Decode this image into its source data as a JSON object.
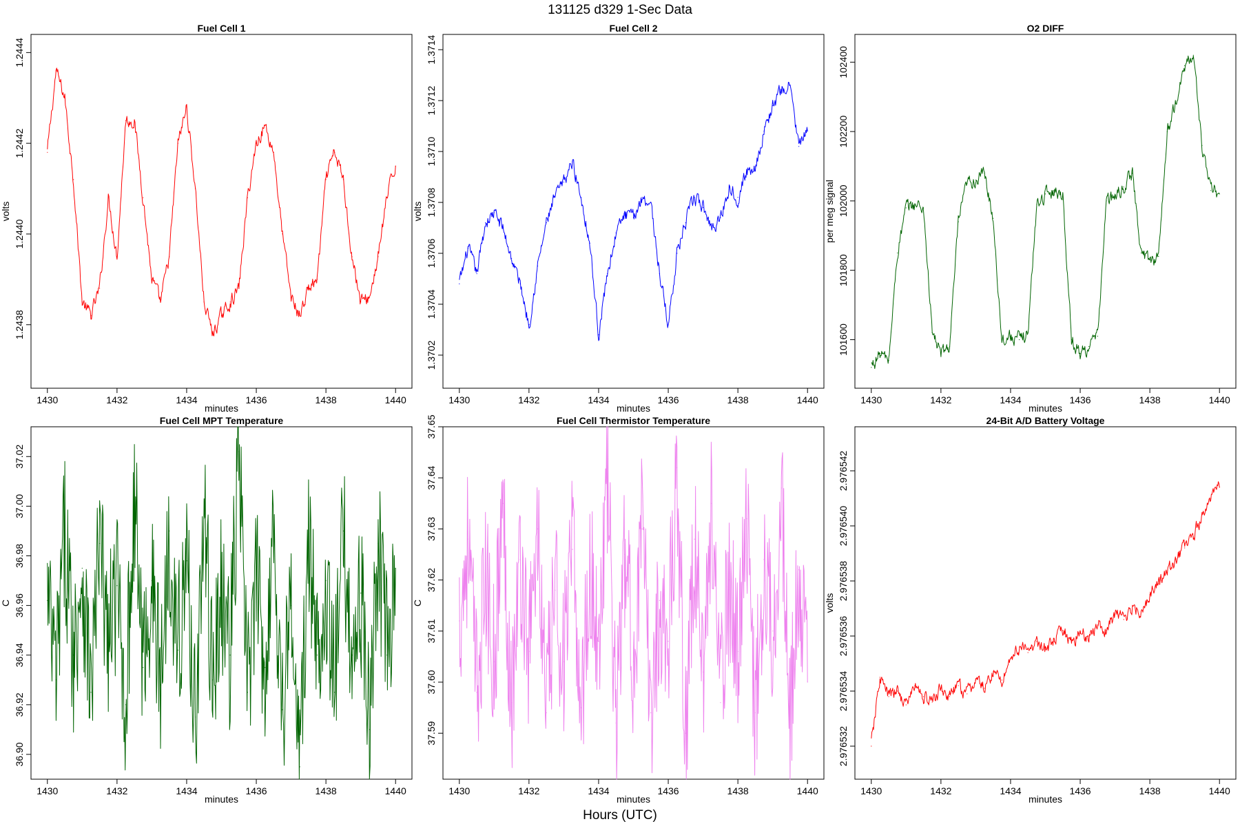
{
  "figure": {
    "title": "131125   d329   1-Sec Data",
    "xlabel": "Hours (UTC)"
  },
  "chart_data": [
    {
      "type": "line",
      "title": "Fuel Cell 1",
      "xlabel": "minutes",
      "ylabel": "volts",
      "color": "#ff0000",
      "xlim": [
        1430,
        1440
      ],
      "ylim": [
        1.24366,
        1.24444
      ],
      "xticks": [
        1430,
        1432,
        1434,
        1436,
        1438,
        1440
      ],
      "xtick_labels": [
        "1430",
        "1432",
        "1434",
        "1436",
        "1438",
        "1440"
      ],
      "yticks": [
        1.2438,
        1.244,
        1.2442,
        1.2444
      ],
      "ytick_labels": [
        "1.2438",
        "1.2440",
        "1.2442",
        "1.2444"
      ],
      "series": [
        {
          "name": "Fuel Cell 1",
          "x": [
            1430,
            1430.25,
            1430.5,
            1430.75,
            1431,
            1431.25,
            1431.5,
            1431.75,
            1432,
            1432.25,
            1432.5,
            1432.75,
            1433,
            1433.25,
            1433.5,
            1433.75,
            1434,
            1434.25,
            1434.5,
            1434.75,
            1435,
            1435.25,
            1435.5,
            1435.75,
            1436,
            1436.25,
            1436.5,
            1436.75,
            1437,
            1437.25,
            1437.5,
            1437.75,
            1438,
            1438.25,
            1438.5,
            1438.75,
            1439,
            1439.25,
            1439.5,
            1439.75,
            1440
          ],
          "values": [
            1.24418,
            1.24436,
            1.2443,
            1.24412,
            1.24385,
            1.24382,
            1.24388,
            1.24408,
            1.24395,
            1.24425,
            1.24425,
            1.24408,
            1.2439,
            1.24385,
            1.24395,
            1.2442,
            1.24428,
            1.2441,
            1.24385,
            1.24378,
            1.24382,
            1.24385,
            1.24388,
            1.24408,
            1.2442,
            1.24424,
            1.24418,
            1.244,
            1.24386,
            1.24382,
            1.24388,
            1.2439,
            1.24412,
            1.24418,
            1.24412,
            1.24395,
            1.24385,
            1.24386,
            1.24395,
            1.24408,
            1.24415
          ]
        }
      ]
    },
    {
      "type": "line",
      "title": "Fuel Cell 2",
      "xlabel": "minutes",
      "ylabel": "volts",
      "color": "#0000ff",
      "xlim": [
        1430,
        1440
      ],
      "ylim": [
        1.37007,
        1.37146
      ],
      "xticks": [
        1430,
        1432,
        1434,
        1436,
        1438,
        1440
      ],
      "xtick_labels": [
        "1430",
        "1432",
        "1434",
        "1436",
        "1438",
        "1440"
      ],
      "yticks": [
        1.3702,
        1.3704,
        1.3706,
        1.3708,
        1.371,
        1.3712,
        1.3714
      ],
      "ytick_labels": [
        "1.3702",
        "1.3704",
        "1.3706",
        "1.3708",
        "1.3710",
        "1.3712",
        "1.3714"
      ],
      "series": [
        {
          "name": "Fuel Cell 2",
          "x": [
            1430,
            1430.25,
            1430.5,
            1430.75,
            1431,
            1431.25,
            1431.5,
            1431.75,
            1432,
            1432.25,
            1432.5,
            1432.75,
            1433,
            1433.25,
            1433.5,
            1433.75,
            1434,
            1434.25,
            1434.5,
            1434.75,
            1435,
            1435.25,
            1435.5,
            1435.75,
            1436,
            1436.25,
            1436.5,
            1436.75,
            1437,
            1437.25,
            1437.5,
            1437.75,
            1438,
            1438.25,
            1438.5,
            1438.75,
            1439,
            1439.25,
            1439.5,
            1439.75,
            1440
          ],
          "values": [
            1.37048,
            1.37062,
            1.37052,
            1.37072,
            1.37076,
            1.3707,
            1.37058,
            1.37048,
            1.37032,
            1.37055,
            1.37072,
            1.37082,
            1.37088,
            1.37096,
            1.37082,
            1.37064,
            1.37028,
            1.37052,
            1.37068,
            1.37075,
            1.37074,
            1.37082,
            1.3708,
            1.37052,
            1.37032,
            1.3706,
            1.37072,
            1.37082,
            1.37078,
            1.3707,
            1.37074,
            1.37086,
            1.37082,
            1.37092,
            1.37094,
            1.37108,
            1.37118,
            1.37124,
            1.37126,
            1.37102,
            1.37108
          ]
        }
      ]
    },
    {
      "type": "line",
      "title": "O2 DIFF",
      "xlabel": "minutes",
      "ylabel": "per meg signal",
      "color": "#006400",
      "xlim": [
        1430,
        1440
      ],
      "ylim": [
        101460,
        102480
      ],
      "xticks": [
        1430,
        1432,
        1434,
        1436,
        1438,
        1440
      ],
      "xtick_labels": [
        "1430",
        "1432",
        "1434",
        "1436",
        "1438",
        "1440"
      ],
      "yticks": [
        101600,
        101800,
        102000,
        102200,
        102400
      ],
      "ytick_labels": [
        "101600",
        "101800",
        "102000",
        "102200",
        "102400"
      ],
      "series": [
        {
          "name": "O2 DIFF",
          "x": [
            1430,
            1430.25,
            1430.5,
            1430.75,
            1431,
            1431.25,
            1431.5,
            1431.75,
            1432,
            1432.25,
            1432.5,
            1432.75,
            1433,
            1433.25,
            1433.5,
            1433.75,
            1434,
            1434.25,
            1434.5,
            1434.75,
            1435,
            1435.25,
            1435.5,
            1435.75,
            1436,
            1436.25,
            1436.5,
            1436.75,
            1437,
            1437.25,
            1437.5,
            1437.75,
            1438,
            1438.25,
            1438.5,
            1438.75,
            1439,
            1439.25,
            1439.5,
            1439.75,
            1440
          ],
          "values": [
            101520,
            101560,
            101540,
            101850,
            101980,
            101990,
            101980,
            101620,
            101560,
            101580,
            101940,
            102050,
            102060,
            102080,
            101950,
            101600,
            101610,
            101600,
            101620,
            101990,
            102020,
            102030,
            102020,
            101600,
            101560,
            101580,
            101610,
            102000,
            102010,
            102040,
            102080,
            101850,
            101830,
            101840,
            102200,
            102280,
            102390,
            102420,
            102160,
            102030,
            102020
          ]
        }
      ]
    },
    {
      "type": "line",
      "title": "Fuel Cell MPT Temperature",
      "xlabel": "minutes",
      "ylabel": "C",
      "color": "#006400",
      "xlim": [
        1430,
        1440
      ],
      "ylim": [
        36.89,
        37.032
      ],
      "xticks": [
        1430,
        1432,
        1434,
        1436,
        1438,
        1440
      ],
      "xtick_labels": [
        "1430",
        "1432",
        "1434",
        "1436",
        "1438",
        "1440"
      ],
      "yticks": [
        36.9,
        36.92,
        36.94,
        36.96,
        36.98,
        37.0,
        37.02
      ],
      "ytick_labels": [
        "36.90",
        "36.92",
        "36.94",
        "36.96",
        "36.98",
        "37.00",
        "37.02"
      ],
      "series": [
        {
          "name": "Fuel Cell MPT Temperature",
          "x": [
            1430,
            1430.25,
            1430.5,
            1430.75,
            1431,
            1431.25,
            1431.5,
            1431.75,
            1432,
            1432.25,
            1432.5,
            1432.75,
            1433,
            1433.25,
            1433.5,
            1433.75,
            1434,
            1434.25,
            1434.5,
            1434.75,
            1435,
            1435.25,
            1435.5,
            1435.75,
            1436,
            1436.25,
            1436.5,
            1436.75,
            1437,
            1437.25,
            1437.5,
            1437.75,
            1438,
            1438.25,
            1438.5,
            1438.75,
            1439,
            1439.25,
            1439.5,
            1439.75,
            1440
          ],
          "values": [
            36.962,
            36.93,
            36.99,
            36.94,
            36.975,
            36.925,
            36.985,
            36.945,
            36.968,
            36.92,
            37.005,
            36.935,
            36.97,
            36.928,
            36.99,
            36.942,
            36.978,
            36.915,
            36.995,
            36.93,
            36.965,
            36.94,
            37.022,
            36.925,
            36.97,
            36.935,
            36.99,
            36.918,
            36.96,
            36.895,
            36.985,
            36.94,
            36.97,
            36.925,
            36.99,
            36.94,
            36.965,
            36.91,
            36.985,
            36.94,
            36.975
          ]
        }
      ]
    },
    {
      "type": "line",
      "title": "Fuel Cell Thermistor Temperature",
      "xlabel": "minutes",
      "ylabel": "C",
      "color": "#ee82ee",
      "xlim": [
        1430,
        1440
      ],
      "ylim": [
        37.581,
        37.65
      ],
      "xticks": [
        1430,
        1432,
        1434,
        1436,
        1438,
        1440
      ],
      "xtick_labels": [
        "1430",
        "1432",
        "1434",
        "1436",
        "1438",
        "1440"
      ],
      "yticks": [
        37.59,
        37.6,
        37.61,
        37.62,
        37.63,
        37.64,
        37.65
      ],
      "ytick_labels": [
        "37.59",
        "37.60",
        "37.61",
        "37.62",
        "37.63",
        "37.64",
        "37.65"
      ],
      "series": [
        {
          "name": "Fuel Cell Thermistor Temperature",
          "x": [
            1430,
            1430.25,
            1430.5,
            1430.75,
            1431,
            1431.25,
            1431.5,
            1431.75,
            1432,
            1432.25,
            1432.5,
            1432.75,
            1433,
            1433.25,
            1433.5,
            1433.75,
            1434,
            1434.25,
            1434.5,
            1434.75,
            1435,
            1435.25,
            1435.5,
            1435.75,
            1436,
            1436.25,
            1436.5,
            1436.75,
            1437,
            1437.25,
            1437.5,
            1437.75,
            1438,
            1438.25,
            1438.5,
            1438.75,
            1439,
            1439.25,
            1439.5,
            1439.75,
            1440
          ],
          "values": [
            37.612,
            37.628,
            37.598,
            37.62,
            37.604,
            37.635,
            37.596,
            37.624,
            37.606,
            37.63,
            37.594,
            37.618,
            37.604,
            37.626,
            37.595,
            37.622,
            37.608,
            37.64,
            37.592,
            37.625,
            37.604,
            37.63,
            37.594,
            37.616,
            37.608,
            37.642,
            37.59,
            37.628,
            37.602,
            37.635,
            37.596,
            37.62,
            37.606,
            37.632,
            37.594,
            37.624,
            37.61,
            37.638,
            37.59,
            37.622,
            37.6
          ]
        }
      ]
    },
    {
      "type": "line",
      "title": "24-Bit A/D Battery Voltage",
      "xlabel": "minutes",
      "ylabel": "volts",
      "color": "#ff0000",
      "xlim": [
        1430,
        1440
      ],
      "ylim": [
        2.9765308,
        2.9765436
      ],
      "xticks": [
        1430,
        1432,
        1434,
        1436,
        1438,
        1440
      ],
      "xtick_labels": [
        "1430",
        "1432",
        "1434",
        "1436",
        "1438",
        "1440"
      ],
      "yticks": [
        2.976532,
        2.976534,
        2.976536,
        2.976538,
        2.97654,
        2.976542
      ],
      "ytick_labels": [
        "2.976532",
        "2.976534",
        "2.976536",
        "2.976538",
        "2.976540",
        "2.976542"
      ],
      "series": [
        {
          "name": "24-Bit A/D Battery Voltage",
          "x": [
            1430,
            1430.25,
            1430.5,
            1430.75,
            1431,
            1431.25,
            1431.5,
            1431.75,
            1432,
            1432.25,
            1432.5,
            1432.75,
            1433,
            1433.25,
            1433.5,
            1433.75,
            1434,
            1434.25,
            1434.5,
            1434.75,
            1435,
            1435.25,
            1435.5,
            1435.75,
            1436,
            1436.25,
            1436.5,
            1436.75,
            1437,
            1437.25,
            1437.5,
            1437.75,
            1438,
            1438.25,
            1438.5,
            1438.75,
            1439,
            1439.25,
            1439.5,
            1439.75,
            1440
          ],
          "values": [
            2.976532,
            2.9765345,
            2.9765338,
            2.976534,
            2.9765335,
            2.9765342,
            2.9765338,
            2.9765336,
            2.9765341,
            2.9765338,
            2.9765342,
            2.9765339,
            2.9765344,
            2.9765341,
            2.9765347,
            2.9765344,
            2.9765352,
            2.9765356,
            2.9765354,
            2.9765358,
            2.9765355,
            2.9765358,
            2.9765362,
            2.9765358,
            2.9765361,
            2.976536,
            2.9765364,
            2.9765362,
            2.9765368,
            2.9765366,
            2.9765371,
            2.9765369,
            2.9765375,
            2.9765379,
            2.9765383,
            2.9765388,
            2.9765392,
            2.9765396,
            2.9765404,
            2.976541,
            2.9765414
          ]
        }
      ]
    }
  ]
}
